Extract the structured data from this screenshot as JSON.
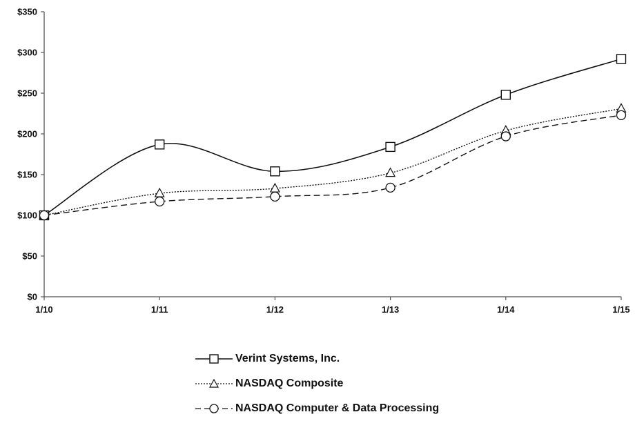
{
  "chart_data": {
    "type": "line",
    "x": [
      "1/10",
      "1/11",
      "1/12",
      "1/13",
      "1/14",
      "1/15"
    ],
    "yticks": [
      "$0",
      "$50",
      "$100",
      "$150",
      "$200",
      "$250",
      "$300",
      "$350"
    ],
    "ylim": [
      0,
      350
    ],
    "grid": false,
    "legend_position": "bottom",
    "series": [
      {
        "name": "Verint Systems, Inc.",
        "values": [
          100,
          187,
          154,
          184,
          248,
          292
        ],
        "marker": "square",
        "line_style": "solid"
      },
      {
        "name": "NASDAQ Composite",
        "values": [
          100,
          127,
          133,
          152,
          204,
          231
        ],
        "marker": "triangle",
        "line_style": "dotted"
      },
      {
        "name": "NASDAQ Computer & Data Processing",
        "values": [
          100,
          117,
          123,
          134,
          197,
          223
        ],
        "marker": "circle",
        "line_style": "dashed"
      }
    ]
  }
}
